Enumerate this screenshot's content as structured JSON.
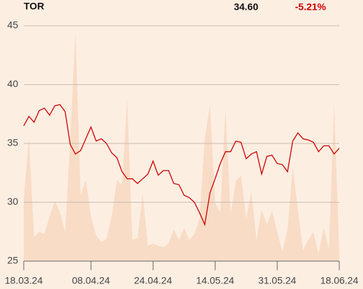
{
  "header": {
    "ticker": "TOR",
    "price": "34.60",
    "change": "-5.21%"
  },
  "chart_data": {
    "type": "line",
    "categories": [
      "18.03.24",
      null,
      null,
      null,
      null,
      null,
      null,
      null,
      null,
      null,
      null,
      null,
      null,
      "08.04.24",
      null,
      null,
      null,
      null,
      null,
      null,
      null,
      null,
      null,
      null,
      null,
      "24.04.24",
      null,
      null,
      null,
      null,
      null,
      null,
      null,
      null,
      null,
      null,
      null,
      "14.05.24",
      null,
      null,
      null,
      null,
      null,
      null,
      null,
      null,
      null,
      null,
      null,
      "31.05.24",
      null,
      null,
      null,
      null,
      null,
      null,
      null,
      null,
      null,
      null,
      null,
      "18.06.24"
    ],
    "series": [
      {
        "type": "area",
        "color": "#f8dcc6",
        "values": [
          30.3,
          35.5,
          27.0,
          27.5,
          27.3,
          28.8,
          30.1,
          29.2,
          27.5,
          35.4,
          44.5,
          30.6,
          31.9,
          28.8,
          27.2,
          26.6,
          26.9,
          28.8,
          31.9,
          31.5,
          38.8,
          26.8,
          27.0,
          30.7,
          26.3,
          26.5,
          26.3,
          26.2,
          26.5,
          27.7,
          26.8,
          27.8,
          26.8,
          27.3,
          28.6,
          35.4,
          38.3,
          30.0,
          29.1,
          37.9,
          29.1,
          31.8,
          32.3,
          28.6,
          30.9,
          26.8,
          29.4,
          28.1,
          29.3,
          27.5,
          25.8,
          27.7,
          33.0,
          29.4,
          25.9,
          26.8,
          27.5,
          25.6,
          27.9,
          26.0,
          38.3,
          25.9
        ]
      },
      {
        "type": "line",
        "color": "#cc0000",
        "values": [
          36.5,
          37.3,
          36.8,
          37.8,
          38.0,
          37.4,
          38.2,
          38.3,
          37.7,
          34.9,
          34.1,
          34.4,
          35.4,
          36.4,
          35.2,
          35.4,
          35.0,
          34.2,
          33.8,
          32.6,
          32.0,
          32.0,
          31.6,
          32.0,
          32.4,
          33.5,
          32.3,
          32.7,
          32.7,
          31.6,
          31.5,
          30.6,
          30.4,
          30.0,
          29.1,
          28.1,
          30.8,
          32.0,
          33.3,
          34.3,
          34.3,
          35.2,
          35.1,
          33.7,
          34.1,
          34.3,
          32.4,
          33.9,
          34.0,
          33.3,
          33.2,
          32.6,
          35.2,
          35.9,
          35.4,
          35.3,
          35.1,
          34.3,
          34.8,
          34.8,
          34.1,
          34.6
        ]
      }
    ],
    "ylim": [
      25,
      45
    ],
    "yticks": [
      25,
      30,
      35,
      40,
      45
    ],
    "grid": true
  }
}
